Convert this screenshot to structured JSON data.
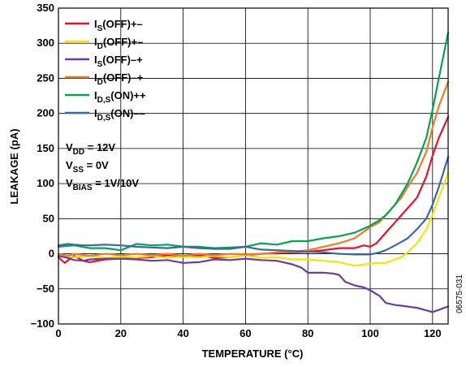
{
  "chart_data": {
    "type": "line",
    "xlabel": "TEMPERATURE (°C)",
    "ylabel": "LEAKAGE (pA)",
    "xlim": [
      0,
      125
    ],
    "ylim": [
      -100,
      350
    ],
    "xticks": [
      0,
      20,
      40,
      60,
      80,
      100,
      120
    ],
    "yticks": [
      350,
      300,
      250,
      200,
      150,
      100,
      50,
      0,
      -50,
      -100
    ],
    "grid": true,
    "legend_position": "top-left",
    "figure_id": "06575-031",
    "conditions": [
      {
        "main": "V",
        "sub": "DD",
        "rest": " = 12V"
      },
      {
        "main": "V",
        "sub": "SS",
        "rest": " = 0V"
      },
      {
        "main": "V",
        "sub": "BIAS",
        "rest": " = 1V/10V"
      }
    ],
    "series": [
      {
        "name": "IS(OFF)+–",
        "label_main": "I",
        "label_sub": "S",
        "label_rest": "(OFF)+–",
        "color": "#e8112d",
        "x": [
          0,
          2,
          5,
          8,
          10,
          15,
          20,
          25,
          30,
          35,
          40,
          45,
          50,
          55,
          60,
          65,
          70,
          75,
          80,
          85,
          90,
          95,
          98,
          100,
          102,
          105,
          108,
          110,
          112,
          115,
          118,
          120,
          122,
          125
        ],
        "y": [
          -5,
          -13,
          -3,
          -10,
          -12,
          -8,
          -7,
          -6,
          -5,
          -2,
          -3,
          -2,
          -6,
          -5,
          -2,
          0,
          1,
          2,
          3,
          5,
          8,
          8,
          12,
          10,
          15,
          30,
          45,
          55,
          65,
          80,
          110,
          140,
          165,
          195
        ]
      },
      {
        "name": "ID(OFF)+–",
        "label_main": "I",
        "label_sub": "D",
        "label_rest": "(OFF)+–",
        "color": "#ffe100",
        "x": [
          0,
          5,
          10,
          15,
          20,
          25,
          30,
          35,
          40,
          45,
          50,
          55,
          60,
          65,
          70,
          75,
          80,
          85,
          90,
          95,
          100,
          102,
          105,
          108,
          110,
          112,
          115,
          118,
          120,
          122,
          125
        ],
        "y": [
          -2,
          -5,
          -3,
          -6,
          -4,
          -5,
          -3,
          -6,
          -4,
          -5,
          -3,
          -5,
          -2,
          -6,
          -5,
          -8,
          -8,
          -10,
          -12,
          -17,
          -14,
          -13,
          -13,
          -8,
          -5,
          2,
          15,
          35,
          55,
          80,
          115
        ]
      },
      {
        "name": "IS(OFF)–+",
        "label_main": "I",
        "label_sub": "S",
        "label_rest": "(OFF)–+",
        "color": "#6a3ea1",
        "x": [
          0,
          3,
          5,
          8,
          10,
          15,
          20,
          25,
          30,
          35,
          40,
          45,
          50,
          55,
          60,
          65,
          70,
          75,
          78,
          80,
          85,
          88,
          90,
          92,
          95,
          98,
          100,
          103,
          105,
          108,
          110,
          115,
          120,
          122,
          125
        ],
        "y": [
          -3,
          -6,
          -9,
          -10,
          -8,
          -7,
          -7,
          -8,
          -10,
          -9,
          -13,
          -12,
          -8,
          -9,
          -7,
          -9,
          -10,
          -15,
          -20,
          -27,
          -27,
          -28,
          -30,
          -40,
          -45,
          -48,
          -52,
          -60,
          -70,
          -73,
          -74,
          -77,
          -83,
          -80,
          -75
        ]
      },
      {
        "name": "ID(OFF)–+",
        "label_main": "I",
        "label_sub": "D",
        "label_rest": "(OFF)–+",
        "color": "#f47920",
        "x": [
          0,
          3,
          5,
          10,
          15,
          20,
          25,
          30,
          35,
          40,
          45,
          50,
          55,
          60,
          65,
          70,
          75,
          80,
          85,
          90,
          95,
          100,
          103,
          105,
          108,
          110,
          112,
          115,
          118,
          120,
          122,
          125
        ],
        "y": [
          0,
          -3,
          0,
          -3,
          0,
          -2,
          0,
          -2,
          0,
          -3,
          0,
          -2,
          0,
          -1,
          0,
          2,
          3,
          5,
          10,
          15,
          22,
          38,
          45,
          55,
          70,
          80,
          95,
          115,
          145,
          180,
          210,
          245
        ]
      },
      {
        "name": "ID,S(ON)++",
        "label_main": "I",
        "label_sub": "D,S",
        "label_rest": "(ON)++",
        "color": "#00a651",
        "x": [
          0,
          5,
          10,
          15,
          20,
          25,
          30,
          35,
          40,
          45,
          50,
          55,
          60,
          65,
          70,
          75,
          80,
          85,
          90,
          95,
          100,
          103,
          105,
          108,
          110,
          112,
          115,
          118,
          120,
          122,
          125
        ],
        "y": [
          10,
          12,
          8,
          8,
          5,
          14,
          12,
          13,
          10,
          10,
          8,
          9,
          10,
          15,
          13,
          18,
          18,
          22,
          25,
          30,
          40,
          48,
          55,
          70,
          85,
          100,
          130,
          165,
          205,
          250,
          315
        ]
      },
      {
        "name": "ID,S(ON)––",
        "label_main": "I",
        "label_sub": "D,S",
        "label_rest": "(ON)––",
        "color": "#3a67a8",
        "x": [
          0,
          3,
          5,
          8,
          10,
          15,
          20,
          25,
          30,
          35,
          40,
          45,
          50,
          55,
          60,
          65,
          70,
          75,
          80,
          85,
          90,
          95,
          100,
          103,
          105,
          108,
          110,
          112,
          115,
          118,
          120,
          122,
          125
        ],
        "y": [
          12,
          14,
          13,
          12,
          12,
          13,
          12,
          10,
          9,
          8,
          10,
          8,
          7,
          7,
          10,
          6,
          5,
          4,
          3,
          2,
          0,
          -1,
          -1,
          2,
          5,
          12,
          17,
          22,
          35,
          50,
          70,
          95,
          138
        ]
      }
    ]
  }
}
